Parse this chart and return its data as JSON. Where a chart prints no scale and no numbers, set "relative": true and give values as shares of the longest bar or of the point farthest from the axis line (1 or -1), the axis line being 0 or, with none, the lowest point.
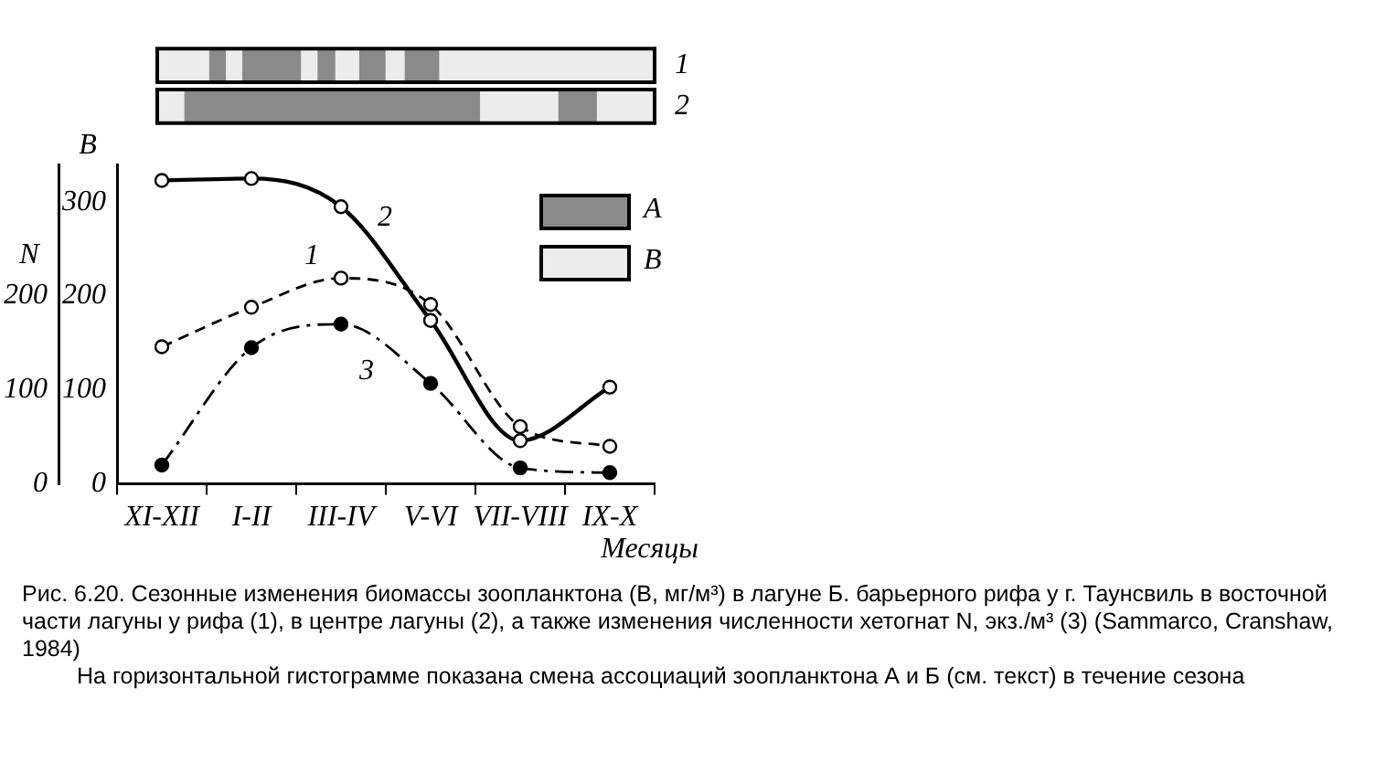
{
  "chart_data": [
    {
      "type": "bar",
      "orientation": "horizontal",
      "stacked": true,
      "relative": true,
      "categories": [
        "1",
        "2"
      ],
      "series": [
        {
          "values": [
            0.104,
            0.054
          ],
          "color": "#ececec"
        },
        {
          "values": [
            0.034,
            0.595
          ],
          "color": "#8a8a8a"
        },
        {
          "values": [
            0.033,
            0.157
          ],
          "color": "#ececec"
        },
        {
          "values": [
            0.118,
            0.078
          ],
          "color": "#8a8a8a"
        },
        {
          "values": [
            0.033,
            0.116
          ],
          "color": "#ececec"
        },
        {
          "values": [
            0.036,
            null
          ],
          "color": "#8a8a8a"
        },
        {
          "values": [
            0.048,
            null
          ],
          "color": "#ececec"
        },
        {
          "values": [
            0.053,
            null
          ],
          "color": "#8a8a8a"
        },
        {
          "values": [
            0.038,
            null
          ],
          "color": "#ececec"
        },
        {
          "values": [
            0.07,
            null
          ],
          "color": "#8a8a8a"
        },
        {
          "values": [
            0.433,
            null
          ],
          "color": "#ececec"
        }
      ],
      "annotations": [
        "А",
        "В"
      ]
    },
    {
      "type": "line",
      "title": null,
      "xlabel": "Месяцы",
      "ylabel": "В",
      "y2label": "N",
      "categories": [
        "XI-XII",
        "I-II",
        "III-IV",
        "V-VI",
        "VII-VIII",
        "IX-X"
      ],
      "ylim": [
        0,
        340
      ],
      "yticks": [
        0,
        100,
        200,
        300
      ],
      "y2lim": [
        0,
        340
      ],
      "y2ticks": [
        0,
        100,
        200
      ],
      "marker": "circle",
      "series": [
        {
          "name": "1",
          "color": "#000000",
          "line_style": "dashed",
          "values": [
            146,
            188,
            219,
            191,
            61,
            40
          ]
        },
        {
          "name": "2",
          "color": "#000000",
          "line_style": "solid",
          "values": [
            323,
            325,
            295,
            174,
            46,
            103
          ]
        },
        {
          "name": "3",
          "color": "#000000",
          "line_style": "dashed",
          "axis": "y2",
          "values": [
            20,
            145,
            170,
            107,
            17,
            12
          ]
        }
      ],
      "annotations": [
        "Рис. 6.20. Сезонные изменения биомассы зоопланктона (B, мг/м³) в лагуне Б. барьерного рифа у г. Таунсвиль в восточной части лагуны у рифа (1), в центре лагуны (2), а также изменения численности хетогнат N, экз./м³ (3) (Sammarco, Cranshaw, 1984)",
        "На горизонтальной гистограмме показана смена ассоциаций зоопланктона А и Б (см. текст) в течение сезона"
      ]
    }
  ]
}
